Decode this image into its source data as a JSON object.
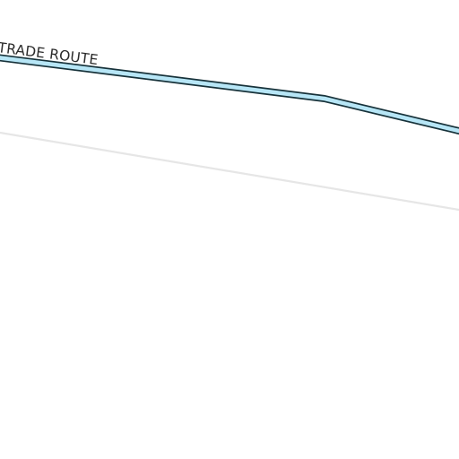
{
  "map": {
    "route_label": "TRADE ROUTE",
    "colors": {
      "background": "#ffffff",
      "route_fill": "#b7e6f6",
      "route_casing": "#17323a",
      "road_line": "#e6e6e6",
      "label_text": "#2b2b2b",
      "label_halo": "#ffffff"
    }
  }
}
